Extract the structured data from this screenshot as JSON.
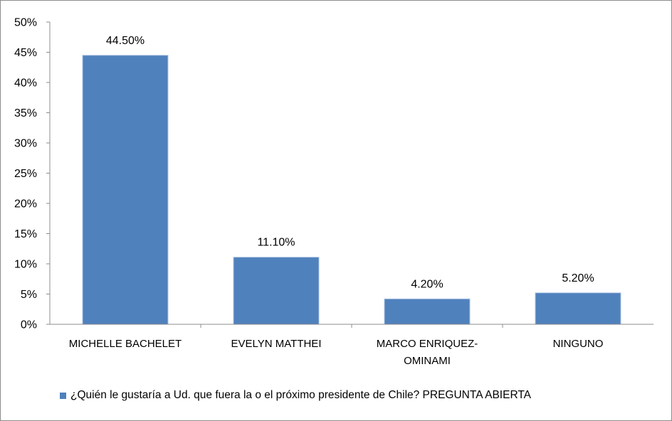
{
  "chart_data": {
    "type": "bar",
    "categories": [
      "MICHELLE BACHELET",
      "EVELYN MATTHEI",
      "MARCO ENRIQUEZ-OMINAMI",
      "NINGUNO"
    ],
    "category_lines": [
      [
        "MICHELLE BACHELET"
      ],
      [
        "EVELYN MATTHEI"
      ],
      [
        "MARCO ENRIQUEZ-",
        "OMINAMI"
      ],
      [
        "NINGUNO"
      ]
    ],
    "series": [
      {
        "name": "¿Quién le gustaría a Ud. que fuera la o el próximo presidente de Chile? PREGUNTA ABIERTA",
        "values": [
          44.5,
          11.1,
          4.2,
          5.2
        ],
        "labels": [
          "44.50%",
          "11.10%",
          "4.20%",
          "5.20%"
        ],
        "color": "#4f81bd"
      }
    ],
    "ylim": [
      0,
      50
    ],
    "yticks": [
      0,
      5,
      10,
      15,
      20,
      25,
      30,
      35,
      40,
      45,
      50
    ],
    "ytick_labels": [
      "0%",
      "5%",
      "10%",
      "15%",
      "20%",
      "25%",
      "30%",
      "35%",
      "40%",
      "45%",
      "50%"
    ],
    "grid": false,
    "legend_position": "bottom"
  }
}
